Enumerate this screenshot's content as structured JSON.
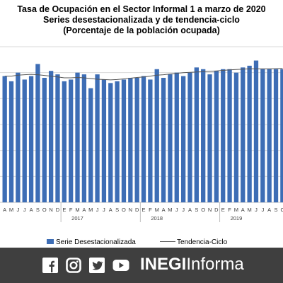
{
  "title_lines": [
    "Tasa de Ocupación en el Sector Informal 1 a marzo de 2020",
    "Series desestacionalizada y de tendencia-ciclo",
    "(Porcentaje de la población ocupada)"
  ],
  "chart_data": {
    "type": "bar",
    "title": "Tasa de Ocupación en el Sector Informal 1 a marzo de 2020",
    "subtitle": "Series desestacionalizada y de tendencia-ciclo",
    "categories": [
      "A",
      "M",
      "J",
      "J",
      "A",
      "S",
      "O",
      "N",
      "D",
      "E",
      "F",
      "M",
      "A",
      "M",
      "J",
      "J",
      "A",
      "S",
      "O",
      "N",
      "D",
      "E",
      "F",
      "M",
      "A",
      "M",
      "J",
      "J",
      "A",
      "S",
      "O",
      "N",
      "D",
      "E",
      "F",
      "M",
      "A",
      "M",
      "J",
      "J",
      "A",
      "S",
      "O"
    ],
    "year_labels": [
      {
        "label": "2017",
        "index": 11
      },
      {
        "label": "2018",
        "index": 23
      },
      {
        "label": "2019",
        "index": 35
      }
    ],
    "series": [
      {
        "name": "Serie Desestacionalizada",
        "type": "bar",
        "color": "#3d6db5",
        "values": [
          27.3,
          27.0,
          27.5,
          27.1,
          27.3,
          28.0,
          27.2,
          27.6,
          27.4,
          27.0,
          27.1,
          27.5,
          27.4,
          26.6,
          27.4,
          27.1,
          26.9,
          27.0,
          27.1,
          27.2,
          27.2,
          27.3,
          27.1,
          27.7,
          27.2,
          27.4,
          27.5,
          27.3,
          27.5,
          27.8,
          27.7,
          27.4,
          27.6,
          27.7,
          27.7,
          27.5,
          27.8,
          27.9,
          28.2,
          27.7,
          27.7,
          27.7,
          27.7
        ]
      },
      {
        "name": "Tendencia-Ciclo",
        "type": "line",
        "color": "#555555",
        "values": [
          27.3,
          27.3,
          27.35,
          27.38,
          27.4,
          27.38,
          27.34,
          27.3,
          27.25,
          27.2,
          27.2,
          27.22,
          27.2,
          27.16,
          27.12,
          27.1,
          27.08,
          27.1,
          27.14,
          27.18,
          27.22,
          27.25,
          27.3,
          27.35,
          27.38,
          27.42,
          27.46,
          27.5,
          27.52,
          27.54,
          27.56,
          27.58,
          27.6,
          27.63,
          27.66,
          27.68,
          27.7,
          27.72,
          27.72,
          27.72,
          27.72,
          27.73,
          27.74
        ]
      }
    ],
    "grid": true,
    "legend": "bottom"
  },
  "footer": {
    "brand_bold": "INEGI",
    "brand_light": "Informa",
    "icons": [
      "facebook-icon",
      "instagram-icon",
      "twitter-icon",
      "youtube-icon"
    ]
  }
}
